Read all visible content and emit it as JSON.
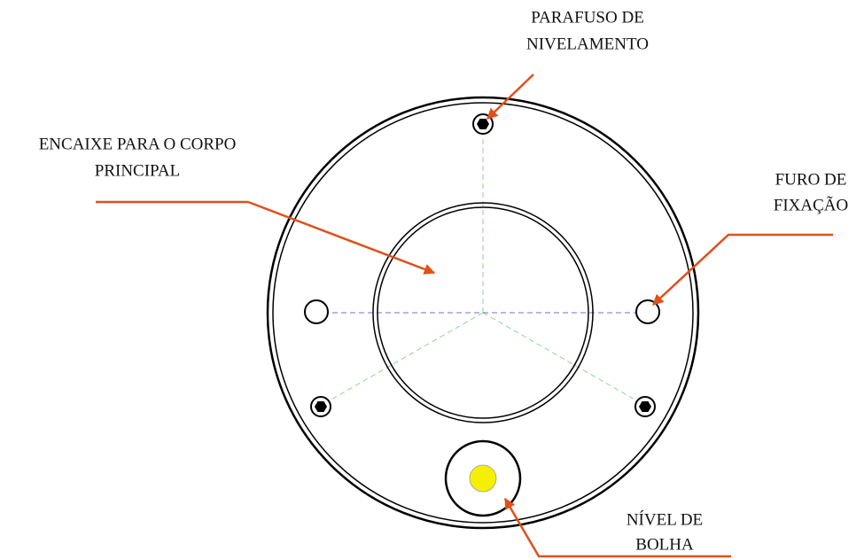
{
  "labels": [
    {
      "lines": [
        "PARAFUSO DE",
        "NIVELAMENTO"
      ]
    },
    {
      "lines": [
        "ENCAIXE PARA O CORPO",
        "PRINCIPAL"
      ]
    },
    {
      "lines": [
        "FURO DE",
        "FIXAÇÃO"
      ]
    },
    {
      "lines": [
        "NÍVEL DE",
        "BOLHA"
      ]
    }
  ]
}
